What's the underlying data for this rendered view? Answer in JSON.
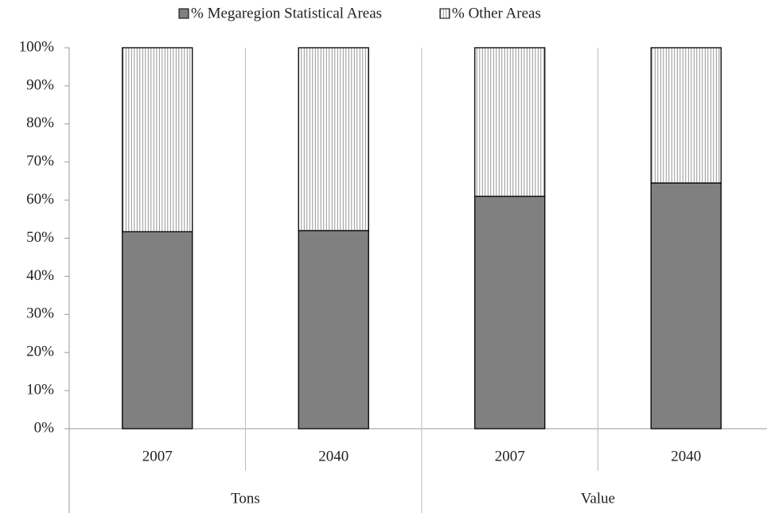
{
  "chart_data": {
    "type": "stacked_bar",
    "groups": [
      {
        "name": "Tons",
        "categories": [
          "2007",
          "2040"
        ]
      },
      {
        "name": "Value",
        "categories": [
          "2007",
          "2040"
        ]
      }
    ],
    "series": [
      {
        "name": "% Megaregion Statistical Areas",
        "color": "#808080",
        "values": [
          51.7,
          52,
          61,
          64.5
        ]
      },
      {
        "name": "% Other Areas",
        "color": "#ffffff",
        "pattern": "vertical-hatch",
        "values": [
          48.3,
          48,
          39,
          35.5
        ]
      }
    ],
    "ylim": [
      0,
      100
    ],
    "yticks": [
      {
        "value": 0,
        "label": "0%"
      },
      {
        "value": 10,
        "label": "10%"
      },
      {
        "value": 20,
        "label": "20%"
      },
      {
        "value": 30,
        "label": "30%"
      },
      {
        "value": 40,
        "label": "40%"
      },
      {
        "value": 50,
        "label": "50%"
      },
      {
        "value": 60,
        "label": "60%"
      },
      {
        "value": 70,
        "label": "70%"
      },
      {
        "value": 80,
        "label": "80%"
      },
      {
        "value": 90,
        "label": "90%"
      },
      {
        "value": 100,
        "label": "100%"
      }
    ],
    "legend": "top"
  }
}
